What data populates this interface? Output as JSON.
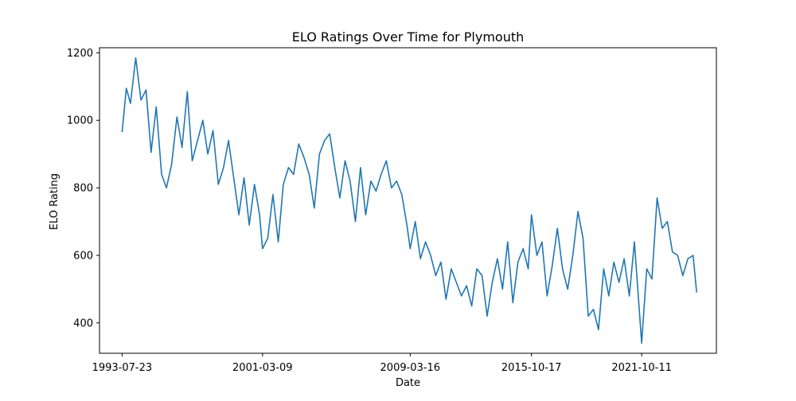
{
  "chart_data": {
    "type": "line",
    "title": "ELO Ratings Over Time for Plymouth",
    "xlabel": "Date",
    "ylabel": "ELO Rating",
    "x_tick_labels": [
      "1993-07-23",
      "2001-03-09",
      "2009-03-16",
      "2015-10-17",
      "2021-10-11"
    ],
    "y_ticks": [
      400,
      600,
      800,
      1000,
      1200
    ],
    "ylim": [
      310,
      1215
    ],
    "grid": false,
    "line_color": "#1f77b4",
    "series": [
      {
        "x": [
          "1993-07-23",
          "1993-10-15",
          "1994-01-05",
          "1994-04-20",
          "1994-08-01",
          "1994-11-10",
          "1995-02-18",
          "1995-06-01",
          "1995-09-15",
          "1995-12-20",
          "1996-04-01",
          "1996-07-15",
          "1996-10-25",
          "1997-02-05",
          "1997-05-15",
          "1997-08-28",
          "1997-12-10",
          "1998-03-20",
          "1998-07-01",
          "1998-10-15",
          "1999-01-25",
          "1999-05-05",
          "1999-08-15",
          "1999-11-25",
          "2000-03-08",
          "2000-06-18",
          "2000-09-30",
          "2001-01-10",
          "2001-03-09",
          "2001-06-20",
          "2001-10-01",
          "2002-01-15",
          "2002-04-25",
          "2002-08-05",
          "2002-11-15",
          "2003-02-25",
          "2003-06-10",
          "2003-09-20",
          "2003-12-30",
          "2004-04-10",
          "2004-07-20",
          "2004-11-01",
          "2005-02-10",
          "2005-05-20",
          "2005-09-01",
          "2005-12-10",
          "2006-03-25",
          "2006-07-05",
          "2006-10-15",
          "2007-01-25",
          "2007-05-08",
          "2007-08-18",
          "2007-11-28",
          "2008-03-10",
          "2008-06-20",
          "2008-10-01",
          "2009-01-10",
          "2009-03-16",
          "2009-06-25",
          "2009-10-05",
          "2010-01-15",
          "2010-04-25",
          "2010-08-05",
          "2010-11-15",
          "2011-02-25",
          "2011-06-08",
          "2011-09-18",
          "2011-12-28",
          "2012-04-08",
          "2012-07-18",
          "2012-10-28",
          "2013-02-08",
          "2013-05-20",
          "2013-08-30",
          "2013-12-10",
          "2014-03-22",
          "2014-07-02",
          "2014-10-12",
          "2015-01-22",
          "2015-05-04",
          "2015-08-14",
          "2015-10-17",
          "2016-02-01",
          "2016-05-12",
          "2016-08-22",
          "2016-12-02",
          "2017-03-14",
          "2017-06-24",
          "2017-10-04",
          "2018-01-14",
          "2018-04-26",
          "2018-08-06",
          "2018-11-16",
          "2019-02-26",
          "2019-06-08",
          "2019-09-18",
          "2019-12-28",
          "2020-04-08",
          "2020-07-18",
          "2020-10-28",
          "2021-02-07",
          "2021-05-20",
          "2021-10-11",
          "2022-01-20",
          "2022-05-02",
          "2022-08-12",
          "2022-11-22",
          "2023-03-04",
          "2023-06-14",
          "2023-09-24",
          "2024-01-04",
          "2024-04-15",
          "2024-07-26",
          "2024-10-05"
        ],
        "y": [
          965,
          1095,
          1050,
          1185,
          1060,
          1090,
          905,
          1040,
          840,
          800,
          870,
          1010,
          920,
          1085,
          880,
          940,
          1000,
          900,
          970,
          810,
          860,
          940,
          830,
          720,
          830,
          690,
          810,
          720,
          620,
          650,
          780,
          640,
          810,
          860,
          840,
          930,
          890,
          840,
          740,
          900,
          940,
          960,
          860,
          770,
          880,
          820,
          700,
          860,
          720,
          820,
          790,
          840,
          880,
          800,
          820,
          780,
          690,
          620,
          700,
          590,
          640,
          600,
          540,
          580,
          470,
          560,
          520,
          480,
          510,
          450,
          560,
          540,
          420,
          520,
          590,
          500,
          640,
          460,
          580,
          620,
          560,
          720,
          600,
          640,
          480,
          570,
          680,
          560,
          500,
          600,
          730,
          650,
          420,
          440,
          380,
          560,
          480,
          580,
          520,
          590,
          480,
          640,
          340,
          560,
          530,
          770,
          680,
          700,
          610,
          600,
          540,
          590,
          600,
          490
        ]
      }
    ]
  }
}
